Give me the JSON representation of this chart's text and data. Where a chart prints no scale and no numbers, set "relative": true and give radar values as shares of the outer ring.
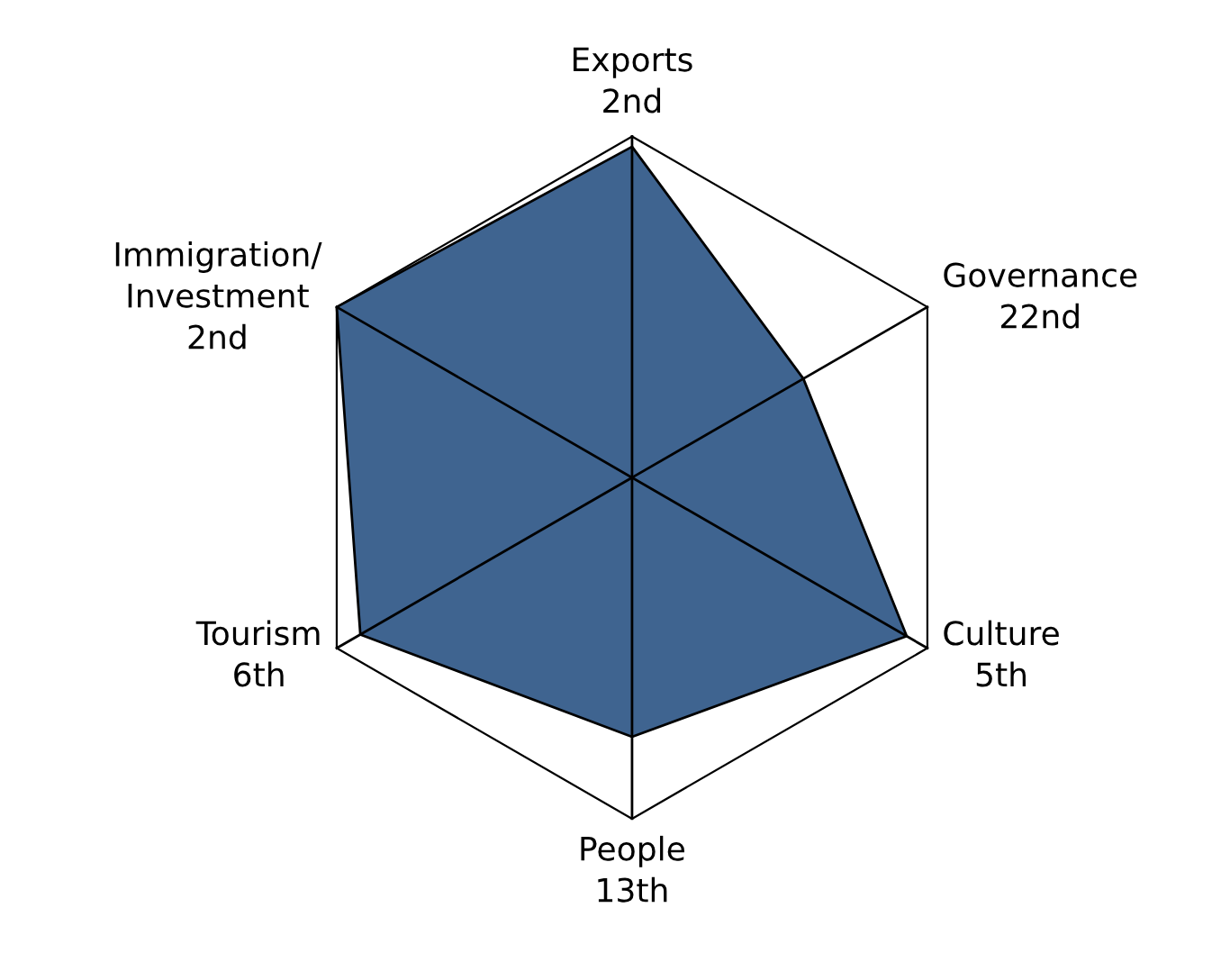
{
  "chart_data": {
    "type": "radar",
    "relative": true,
    "categories": [
      "Exports\n2nd",
      "Governance\n22nd",
      "Culture\n5th",
      "People\n13th",
      "Tourism\n6th",
      "Immigration/\nInvestment\n2nd"
    ],
    "series": [
      {
        "color": "#3f6490",
        "values": [
          0.97,
          0.58,
          0.93,
          0.76,
          0.92,
          1.0
        ]
      }
    ],
    "grid": true,
    "legend": false
  }
}
